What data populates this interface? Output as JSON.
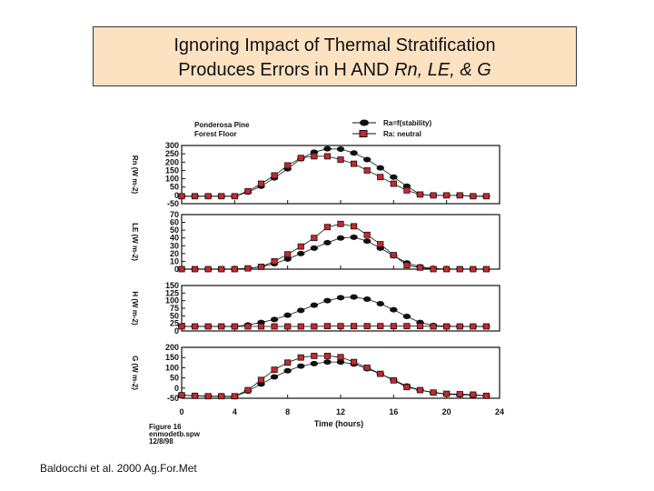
{
  "slide": {
    "title_line1": "Ignoring Impact of Thermal Stratification",
    "title_line2_prefix": "Produces Errors in H AND ",
    "title_line2_italic": "Rn, LE, & G",
    "citation": "Baldocchi et al. 2000 Ag.For.Met"
  },
  "colors": {
    "stability": "#111111",
    "neutral": "#c8282c",
    "title_bg": "#fde2c2"
  },
  "chart_data": {
    "type": "line",
    "site_line1": "Ponderosa Pine",
    "site_line2": "Forest Floor",
    "legend": [
      "Ra=f(stability)",
      "Ra: neutral"
    ],
    "xlabel": "Time (hours)",
    "xlim": [
      0,
      24
    ],
    "xticks": [
      0,
      4,
      8,
      12,
      16,
      20,
      24
    ],
    "figure_caption": [
      "Figure 16",
      "enmodetb.spw",
      "12/8/98"
    ],
    "x": [
      0,
      1,
      2,
      3,
      4,
      5,
      6,
      7,
      8,
      9,
      10,
      11,
      12,
      13,
      14,
      15,
      16,
      17,
      18,
      19,
      20,
      21,
      22,
      23
    ],
    "panels": [
      {
        "ylabel": "Rn (W m-2)",
        "ylim": [
          -50,
          300
        ],
        "yticks": [
          -50,
          0,
          50,
          100,
          150,
          200,
          250,
          300
        ],
        "series": [
          {
            "name": "Ra=f(stability)",
            "values": [
              -5,
              -5,
              -5,
              -5,
              -5,
              20,
              55,
              105,
              160,
              220,
              260,
              280,
              278,
              255,
              215,
              165,
              110,
              55,
              5,
              0,
              0,
              0,
              -5,
              -5
            ]
          },
          {
            "name": "Ra: neutral",
            "values": [
              -5,
              -5,
              -5,
              -5,
              -5,
              25,
              70,
              120,
              180,
              225,
              235,
              235,
              215,
              190,
              150,
              110,
              70,
              30,
              5,
              0,
              0,
              0,
              -5,
              -5
            ]
          }
        ]
      },
      {
        "ylabel": "LE (W m-2)",
        "ylim": [
          0,
          70
        ],
        "yticks": [
          0,
          10,
          20,
          30,
          40,
          50,
          60,
          70
        ],
        "series": [
          {
            "name": "Ra=f(stability)",
            "values": [
              0,
              0,
              0,
              0,
              0,
              1,
              3,
              7,
              13,
              20,
              27,
              34,
              40,
              41,
              36,
              27,
              17,
              8,
              3,
              1,
              0,
              0,
              0,
              0
            ]
          },
          {
            "name": "Ra: neutral",
            "values": [
              0,
              0,
              0,
              0,
              0,
              1,
              3,
              10,
              19,
              29,
              40,
              54,
              58,
              55,
              44,
              32,
              18,
              5,
              2,
              0,
              0,
              0,
              0,
              0
            ]
          }
        ]
      },
      {
        "ylabel": "H (W m-2)",
        "ylim": [
          0,
          150
        ],
        "yticks": [
          0,
          25,
          50,
          75,
          100,
          125,
          150
        ],
        "series": [
          {
            "name": "Ra=f(stability)",
            "values": [
              15,
              15,
              15,
              15,
              15,
              20,
              28,
              38,
              52,
              68,
              85,
              100,
              110,
              112,
              105,
              90,
              70,
              48,
              28,
              18,
              16,
              15,
              15,
              15
            ]
          },
          {
            "name": "Ra: neutral",
            "values": [
              15,
              15,
              15,
              15,
              15,
              15,
              15,
              15,
              15,
              15,
              15,
              16,
              16,
              16,
              16,
              16,
              16,
              16,
              16,
              15,
              15,
              15,
              15,
              15
            ]
          }
        ]
      },
      {
        "ylabel": "G (W m-2)",
        "ylim": [
          -50,
          200
        ],
        "yticks": [
          -50,
          0,
          50,
          100,
          150,
          200
        ],
        "series": [
          {
            "name": "Ra=f(stability)",
            "values": [
              -35,
              -38,
              -40,
              -40,
              -42,
              -15,
              20,
              55,
              85,
              108,
              120,
              128,
              128,
              118,
              95,
              70,
              40,
              10,
              -10,
              -22,
              -30,
              -33,
              -35,
              -38
            ]
          },
          {
            "name": "Ra: neutral",
            "values": [
              -35,
              -38,
              -40,
              -40,
              -40,
              -10,
              40,
              90,
              125,
              150,
              158,
              158,
              152,
              128,
              100,
              70,
              38,
              5,
              -10,
              -22,
              -28,
              -30,
              -32,
              -38
            ]
          }
        ]
      }
    ]
  }
}
